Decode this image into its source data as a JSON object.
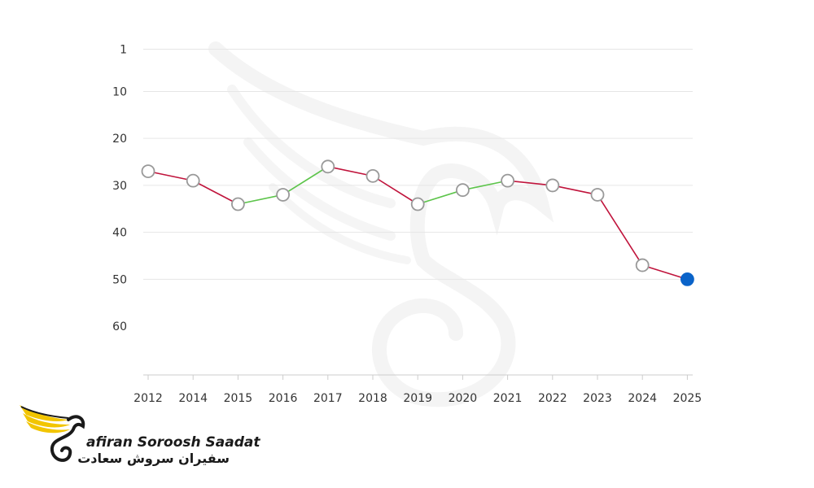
{
  "colors": {
    "decline": "#c0143c",
    "rise": "#5cc44a",
    "marker_fill": "#ffffff",
    "marker_stroke": "#999999",
    "current_marker": "#0a63c9",
    "logo_yellow": "#f2c500",
    "logo_dark": "#1a1a1a"
  },
  "chart_data": {
    "type": "line",
    "x": [
      "2012",
      "2014",
      "2015",
      "2016",
      "2017",
      "2018",
      "2019",
      "2020",
      "2021",
      "2022",
      "2023",
      "2024",
      "2025"
    ],
    "y": [
      27,
      29,
      34,
      32,
      26,
      28,
      34,
      31,
      29,
      30,
      32,
      47,
      50
    ],
    "y_ticks": [
      1,
      10,
      20,
      30,
      40,
      50,
      60
    ],
    "ylim": [
      1,
      60
    ],
    "y_reversed": true,
    "grid": true,
    "legend": "none",
    "highlight_last_point": true
  },
  "logo": {
    "name_en": "afiran Soroosh Saadat",
    "name_fa": "سفیران سروش سعادت"
  }
}
